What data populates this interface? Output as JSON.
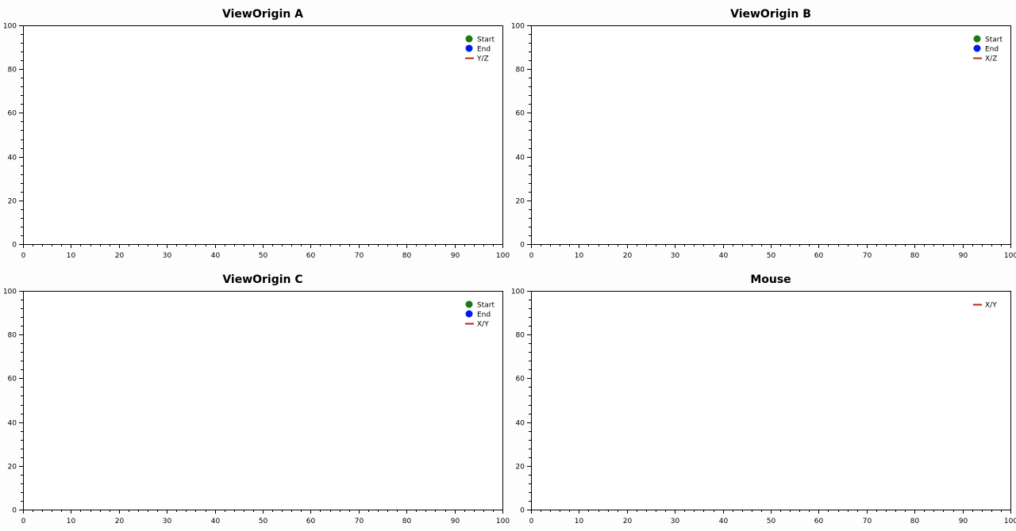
{
  "colors": {
    "background": "#fdfdfd",
    "plot_background": "#ffffff",
    "axis": "#000000",
    "start_marker": "#1a7a1a",
    "end_marker": "#0018f0",
    "path_line": "#b22a0a"
  },
  "chart_data": [
    {
      "type": "line",
      "title": "ViewOrigin A",
      "xlim": [
        0,
        100
      ],
      "ylim": [
        0,
        100
      ],
      "x_ticks": [
        0,
        10,
        20,
        30,
        40,
        50,
        60,
        70,
        80,
        90,
        100
      ],
      "y_ticks": [
        0,
        20,
        40,
        60,
        80,
        100
      ],
      "grid": false,
      "legend_position": "top-right",
      "legend": [
        {
          "label": "Start",
          "kind": "marker",
          "color": "#1a7a1a"
        },
        {
          "label": "End",
          "kind": "marker",
          "color": "#0018f0"
        },
        {
          "label": "Y/Z",
          "kind": "line",
          "color": "#b22a0a"
        }
      ],
      "series": []
    },
    {
      "type": "line",
      "title": "ViewOrigin B",
      "xlim": [
        0,
        100
      ],
      "ylim": [
        0,
        100
      ],
      "x_ticks": [
        0,
        10,
        20,
        30,
        40,
        50,
        60,
        70,
        80,
        90,
        100
      ],
      "y_ticks": [
        0,
        20,
        40,
        60,
        80,
        100
      ],
      "grid": false,
      "legend_position": "top-right",
      "legend": [
        {
          "label": "Start",
          "kind": "marker",
          "color": "#1a7a1a"
        },
        {
          "label": "End",
          "kind": "marker",
          "color": "#0018f0"
        },
        {
          "label": "X/Z",
          "kind": "line",
          "color": "#b22a0a"
        }
      ],
      "series": []
    },
    {
      "type": "line",
      "title": "ViewOrigin C",
      "xlim": [
        0,
        100
      ],
      "ylim": [
        0,
        100
      ],
      "x_ticks": [
        0,
        10,
        20,
        30,
        40,
        50,
        60,
        70,
        80,
        90,
        100
      ],
      "y_ticks": [
        0,
        20,
        40,
        60,
        80,
        100
      ],
      "grid": false,
      "legend_position": "top-right",
      "legend": [
        {
          "label": "Start",
          "kind": "marker",
          "color": "#1a7a1a"
        },
        {
          "label": "End",
          "kind": "marker",
          "color": "#0018f0"
        },
        {
          "label": "X/Y",
          "kind": "line",
          "color": "#b22a0a"
        }
      ],
      "series": []
    },
    {
      "type": "line",
      "title": "Mouse",
      "xlim": [
        0,
        100
      ],
      "ylim": [
        0,
        100
      ],
      "x_ticks": [
        0,
        10,
        20,
        30,
        40,
        50,
        60,
        70,
        80,
        90,
        100
      ],
      "y_ticks": [
        0,
        20,
        40,
        60,
        80,
        100
      ],
      "grid": false,
      "legend_position": "top-right",
      "legend": [
        {
          "label": "X/Y",
          "kind": "line",
          "color": "#b22a0a"
        }
      ],
      "series": []
    }
  ]
}
